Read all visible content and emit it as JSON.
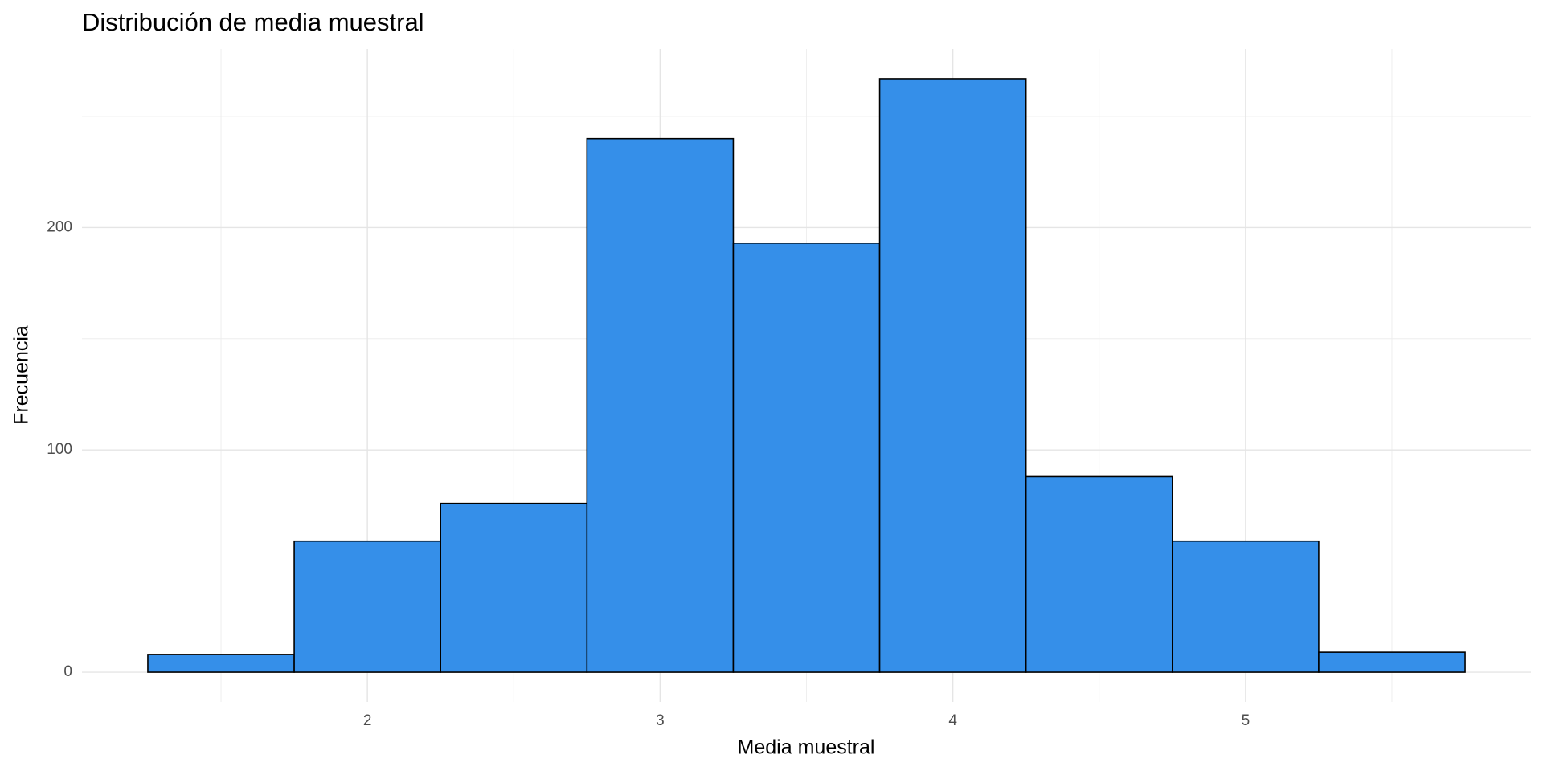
{
  "chart_data": {
    "type": "histogram",
    "title": "Distribución de media muestral",
    "x_label": "Media muestral",
    "y_label": "Frecuencia",
    "bins": [
      1.25,
      1.75,
      2.25,
      2.75,
      3.25,
      3.75,
      4.25,
      4.75,
      5.25,
      5.75
    ],
    "values": [
      8,
      59,
      76,
      240,
      193,
      267,
      88,
      59,
      9
    ],
    "color": "#358fe9",
    "edgecolor": "#000000",
    "xlim": [
      1.025,
      5.975
    ],
    "xticks": [
      2,
      3,
      4,
      5
    ],
    "ylim": [
      -13.35,
      280.35
    ],
    "yticks": [
      0,
      100,
      200
    ],
    "x_minor_grid": [
      1.5,
      2.5,
      3.5,
      4.5,
      5.5
    ],
    "y_minor_grid": [
      50,
      150,
      250
    ],
    "grid": true
  }
}
